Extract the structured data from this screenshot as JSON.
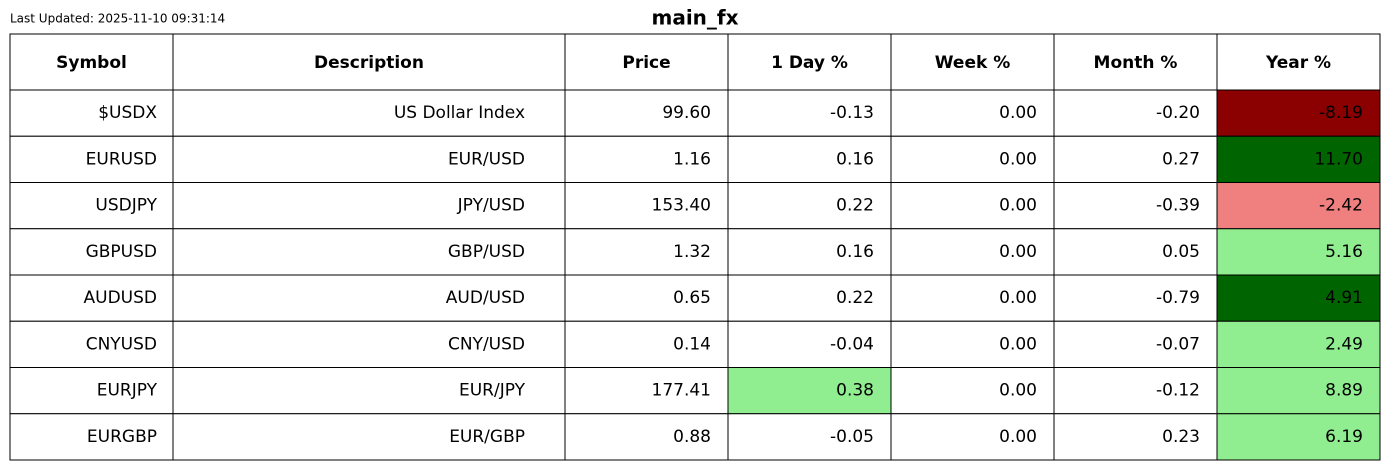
{
  "header": {
    "updated": "Last Updated: 2025-11-10 09:31:14",
    "title": "main_fx"
  },
  "table": {
    "columns": [
      "Symbol",
      "Description",
      "Price",
      "1 Day %",
      "Week %",
      "Month %",
      "Year %"
    ],
    "rows": [
      [
        "$USDX",
        "US Dollar Index",
        "99.60",
        "-0.13",
        "0.00",
        "-0.20",
        "-8.19"
      ],
      [
        "EURUSD",
        "EUR/USD",
        "1.16",
        "0.16",
        "0.00",
        "0.27",
        "11.70"
      ],
      [
        "USDJPY",
        "JPY/USD",
        "153.40",
        "0.22",
        "0.00",
        "-0.39",
        "-2.42"
      ],
      [
        "GBPUSD",
        "GBP/USD",
        "1.32",
        "0.16",
        "0.00",
        "0.05",
        "5.16"
      ],
      [
        "AUDUSD",
        "AUD/USD",
        "0.65",
        "0.22",
        "0.00",
        "-0.79",
        "4.91"
      ],
      [
        "CNYUSD",
        "CNY/USD",
        "0.14",
        "-0.04",
        "0.00",
        "-0.07",
        "2.49"
      ],
      [
        "EURJPY",
        "EUR/JPY",
        "177.41",
        "0.38",
        "0.00",
        "-0.12",
        "8.89"
      ],
      [
        "EURGBP",
        "EUR/GBP",
        "0.88",
        "-0.05",
        "0.00",
        "0.23",
        "6.19"
      ]
    ],
    "cell_fills": [
      [
        null,
        null,
        null,
        null,
        null,
        null,
        "#8b0000"
      ],
      [
        null,
        null,
        null,
        null,
        null,
        null,
        "#006400"
      ],
      [
        null,
        null,
        null,
        null,
        null,
        null,
        "#f08080"
      ],
      [
        null,
        null,
        null,
        null,
        null,
        null,
        "#90ee90"
      ],
      [
        null,
        null,
        null,
        null,
        null,
        null,
        "#006400"
      ],
      [
        null,
        null,
        null,
        null,
        null,
        null,
        "#90ee90"
      ],
      [
        null,
        null,
        null,
        "#90ee90",
        null,
        null,
        "#90ee90"
      ],
      [
        null,
        null,
        null,
        null,
        null,
        null,
        "#90ee90"
      ]
    ]
  }
}
